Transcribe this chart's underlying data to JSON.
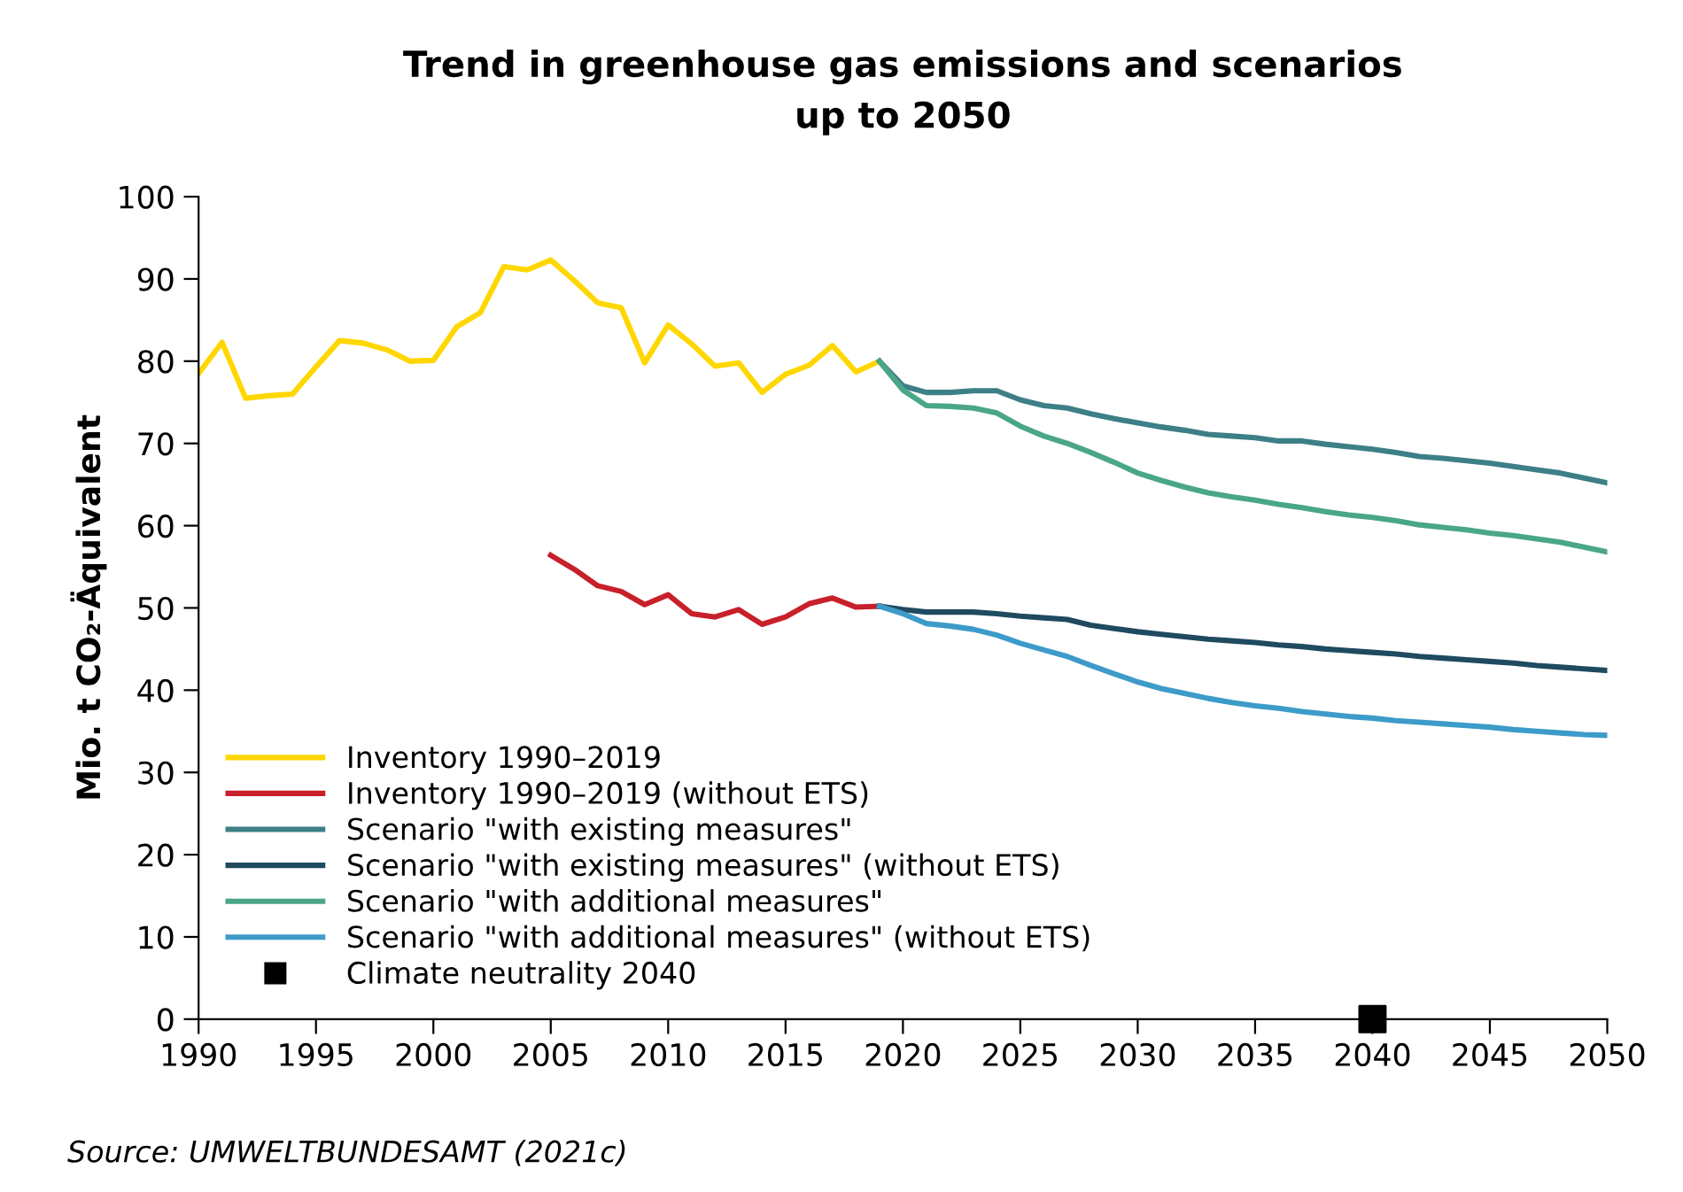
{
  "chart_data": {
    "type": "line",
    "title": "Trend in greenhouse gas emissions and scenarios\nup to 2050",
    "ylabel": "Mio. t CO₂-Äquivalent",
    "xlim": [
      1990,
      2050
    ],
    "xticks": [
      1990,
      1995,
      2000,
      2005,
      2010,
      2015,
      2020,
      2025,
      2030,
      2035,
      2040,
      2045,
      2050
    ],
    "ylim": [
      0,
      100
    ],
    "yticks": [
      0,
      10,
      20,
      30,
      40,
      50,
      60,
      70,
      80,
      90,
      100
    ],
    "grid": false,
    "legend": "bottom left",
    "line_style": "solid",
    "annotations": [
      "Source: UMWELTBUNDESAMT (2021c)"
    ],
    "series": [
      {
        "name": "Inventory 1990–2019",
        "color": "#ffd700",
        "x": [
          1990,
          1991,
          1992,
          1993,
          1994,
          1995,
          1996,
          1997,
          1998,
          1999,
          2000,
          2001,
          2002,
          2003,
          2004,
          2005,
          2006,
          2007,
          2008,
          2009,
          2010,
          2011,
          2012,
          2013,
          2014,
          2015,
          2016,
          2017,
          2018,
          2019
        ],
        "values": [
          78.5,
          82.3,
          75.5,
          75.8,
          76.0,
          79.3,
          82.5,
          82.2,
          81.4,
          80.0,
          80.1,
          84.2,
          85.9,
          91.5,
          91.1,
          92.3,
          89.8,
          87.1,
          86.5,
          79.8,
          84.4,
          82.1,
          79.4,
          79.8,
          76.2,
          78.4,
          79.5,
          81.9,
          78.7,
          80.0
        ]
      },
      {
        "name": "Inventory 1990–2019 (without ETS)",
        "color": "#c8202a",
        "x": [
          2005,
          2006,
          2007,
          2008,
          2009,
          2010,
          2011,
          2012,
          2013,
          2014,
          2015,
          2016,
          2017,
          2018,
          2019
        ],
        "values": [
          56.4,
          54.7,
          52.7,
          52.0,
          50.4,
          51.6,
          49.3,
          48.9,
          49.8,
          48.0,
          48.9,
          50.5,
          51.2,
          50.1,
          50.2
        ]
      },
      {
        "name": "Scenario \"with existing measures\"",
        "color": "#3d7f86",
        "x": [
          2019,
          2020,
          2021,
          2022,
          2023,
          2024,
          2025,
          2026,
          2027,
          2028,
          2029,
          2030,
          2031,
          2032,
          2033,
          2034,
          2035,
          2036,
          2037,
          2038,
          2039,
          2040,
          2041,
          2042,
          2043,
          2044,
          2045,
          2046,
          2047,
          2048,
          2049,
          2050
        ],
        "values": [
          80.0,
          77.0,
          76.2,
          76.2,
          76.4,
          76.4,
          75.3,
          74.6,
          74.3,
          73.6,
          73.0,
          72.5,
          72.0,
          71.6,
          71.1,
          70.9,
          70.7,
          70.3,
          70.3,
          69.9,
          69.6,
          69.3,
          68.9,
          68.4,
          68.2,
          67.9,
          67.6,
          67.2,
          66.8,
          66.4,
          65.8,
          65.2
        ]
      },
      {
        "name": "Scenario \"with existing measures\" (without ETS)",
        "color": "#1f4a60",
        "x": [
          2019,
          2020,
          2021,
          2022,
          2023,
          2024,
          2025,
          2026,
          2027,
          2028,
          2029,
          2030,
          2031,
          2032,
          2033,
          2034,
          2035,
          2036,
          2037,
          2038,
          2039,
          2040,
          2041,
          2042,
          2043,
          2044,
          2045,
          2046,
          2047,
          2048,
          2049,
          2050
        ],
        "values": [
          50.2,
          49.8,
          49.5,
          49.5,
          49.5,
          49.3,
          49.0,
          48.8,
          48.6,
          47.9,
          47.5,
          47.1,
          46.8,
          46.5,
          46.2,
          46.0,
          45.8,
          45.5,
          45.3,
          45.0,
          44.8,
          44.6,
          44.4,
          44.1,
          43.9,
          43.7,
          43.5,
          43.3,
          43.0,
          42.8,
          42.6,
          42.4
        ]
      },
      {
        "name": "Scenario \"with additional measures\"",
        "color": "#4aa688",
        "x": [
          2019,
          2020,
          2021,
          2022,
          2023,
          2024,
          2025,
          2026,
          2027,
          2028,
          2029,
          2030,
          2031,
          2032,
          2033,
          2034,
          2035,
          2036,
          2037,
          2038,
          2039,
          2040,
          2041,
          2042,
          2043,
          2044,
          2045,
          2046,
          2047,
          2048,
          2049,
          2050
        ],
        "values": [
          80.0,
          76.5,
          74.6,
          74.5,
          74.3,
          73.7,
          72.1,
          70.9,
          70.0,
          68.9,
          67.7,
          66.4,
          65.5,
          64.7,
          64.0,
          63.5,
          63.1,
          62.6,
          62.2,
          61.7,
          61.3,
          61.0,
          60.6,
          60.1,
          59.8,
          59.5,
          59.1,
          58.8,
          58.4,
          58.0,
          57.4,
          56.8
        ]
      },
      {
        "name": "Scenario \"with additional measures\" (without ETS)",
        "color": "#3d9bc9",
        "x": [
          2019,
          2020,
          2021,
          2022,
          2023,
          2024,
          2025,
          2026,
          2027,
          2028,
          2029,
          2030,
          2031,
          2032,
          2033,
          2034,
          2035,
          2036,
          2037,
          2038,
          2039,
          2040,
          2041,
          2042,
          2043,
          2044,
          2045,
          2046,
          2047,
          2048,
          2049,
          2050
        ],
        "values": [
          50.2,
          49.3,
          48.1,
          47.8,
          47.4,
          46.7,
          45.7,
          44.9,
          44.1,
          43.0,
          42.0,
          41.0,
          40.2,
          39.6,
          39.0,
          38.5,
          38.1,
          37.8,
          37.4,
          37.1,
          36.8,
          36.6,
          36.3,
          36.1,
          35.9,
          35.7,
          35.5,
          35.2,
          35.0,
          34.8,
          34.6,
          34.5
        ]
      },
      {
        "name": "Climate neutrality 2040",
        "type": "scatter",
        "marker": "square",
        "color": "#000000",
        "x": [
          2040
        ],
        "values": [
          0
        ]
      }
    ]
  }
}
